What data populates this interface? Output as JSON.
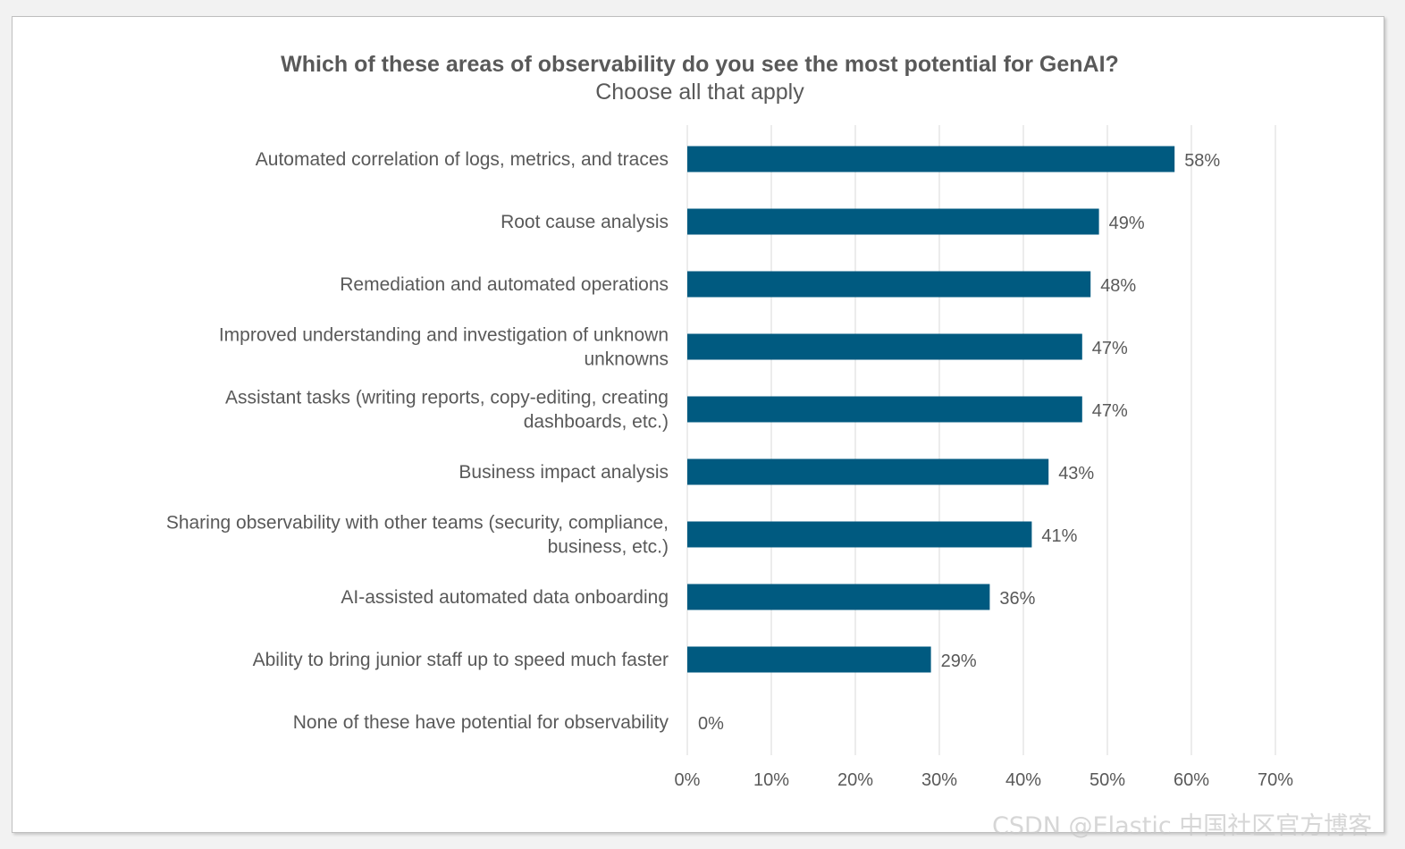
{
  "chart_data": {
    "type": "bar",
    "orientation": "horizontal",
    "title": "Which of these areas of observability do you see the most potential for GenAI?",
    "subtitle": "Choose all that apply",
    "categories": [
      [
        "Automated correlation of logs, metrics, and traces"
      ],
      [
        "Root cause analysis"
      ],
      [
        "Remediation and automated operations"
      ],
      [
        "Improved understanding and investigation of unknown",
        "unknowns"
      ],
      [
        "Assistant tasks (writing reports, copy-editing, creating",
        "dashboards, etc.)"
      ],
      [
        "Business impact analysis"
      ],
      [
        "Sharing observability with other teams (security, compliance,",
        "business, etc.)"
      ],
      [
        "AI-assisted automated data onboarding"
      ],
      [
        "Ability to bring junior staff up to speed much faster"
      ],
      [
        "None of these have potential for observability"
      ]
    ],
    "values": [
      58,
      49,
      48,
      47,
      47,
      43,
      41,
      36,
      29,
      0
    ],
    "data_labels": [
      "58%",
      "49%",
      "48%",
      "47%",
      "47%",
      "43%",
      "41%",
      "36%",
      "29%",
      "0%"
    ],
    "xlim": [
      0,
      70
    ],
    "x_ticks": [
      0,
      10,
      20,
      30,
      40,
      50,
      60,
      70
    ],
    "x_tick_labels": [
      "0%",
      "10%",
      "20%",
      "30%",
      "40%",
      "50%",
      "60%",
      "70%"
    ],
    "grid": true,
    "legend": "none",
    "bar_color": "#005a80"
  },
  "watermark": "CSDN @Elastic 中国社区官方博客"
}
